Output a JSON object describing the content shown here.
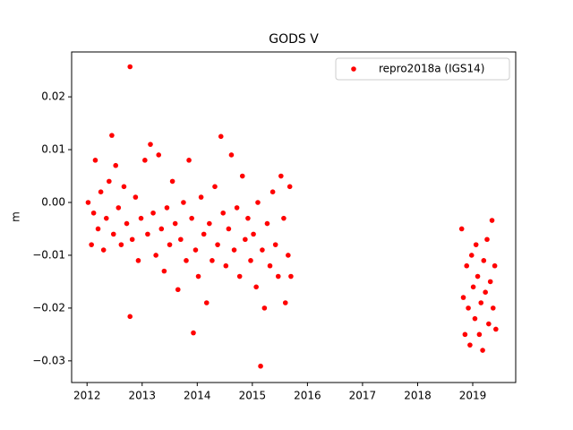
{
  "chart_data": {
    "type": "scatter",
    "title": "GODS V",
    "y_label": "m",
    "xlim": [
      2011.72,
      2019.78
    ],
    "ylim": [
      -0.0341,
      0.0285
    ],
    "xticks": [
      2012,
      2013,
      2014,
      2015,
      2016,
      2017,
      2018,
      2019
    ],
    "yticks": [
      {
        "value": -0.03,
        "label": "−0.03"
      },
      {
        "value": -0.02,
        "label": "−0.02"
      },
      {
        "value": -0.01,
        "label": "−0.01"
      },
      {
        "value": 0,
        "label": "0.00"
      },
      0.01,
      0.02
    ],
    "legend": "upper right",
    "grid": false,
    "series": [
      {
        "name": "repro2018a (IGS14)",
        "color": "#ff0000",
        "x": [
          2012.02,
          2012.08,
          2012.12,
          2012.15,
          2012.2,
          2012.25,
          2012.3,
          2012.35,
          2012.4,
          2012.45,
          2012.48,
          2012.52,
          2012.57,
          2012.62,
          2012.67,
          2012.72,
          2012.78,
          2012.78,
          2012.82,
          2012.88,
          2012.93,
          2012.98,
          2013.05,
          2013.1,
          2013.15,
          2013.2,
          2013.25,
          2013.3,
          2013.35,
          2013.4,
          2013.45,
          2013.5,
          2013.55,
          2013.6,
          2013.65,
          2013.7,
          2013.75,
          2013.8,
          2013.85,
          2013.9,
          2013.93,
          2013.97,
          2014.02,
          2014.07,
          2014.12,
          2014.17,
          2014.22,
          2014.27,
          2014.32,
          2014.37,
          2014.43,
          2014.47,
          2014.52,
          2014.57,
          2014.62,
          2014.67,
          2014.72,
          2014.77,
          2014.82,
          2014.87,
          2014.92,
          2014.97,
          2015.02,
          2015.07,
          2015.1,
          2015.15,
          2015.18,
          2015.22,
          2015.27,
          2015.32,
          2015.37,
          2015.42,
          2015.47,
          2015.52,
          2015.57,
          2015.6,
          2015.65,
          2015.68,
          2015.7,
          2018.8,
          2018.83,
          2018.86,
          2018.89,
          2018.92,
          2018.95,
          2018.98,
          2019.01,
          2019.04,
          2019.06,
          2019.09,
          2019.12,
          2019.15,
          2019.18,
          2019.2,
          2019.23,
          2019.26,
          2019.29,
          2019.32,
          2019.35,
          2019.37,
          2019.4,
          2019.42
        ],
        "values": [
          0.0,
          -0.008,
          -0.002,
          0.008,
          -0.005,
          0.002,
          -0.009,
          -0.003,
          0.004,
          0.0127,
          -0.006,
          0.007,
          -0.001,
          -0.008,
          0.003,
          -0.004,
          0.0257,
          -0.0216,
          -0.007,
          0.001,
          -0.011,
          -0.003,
          0.008,
          -0.006,
          0.011,
          -0.002,
          -0.01,
          0.009,
          -0.005,
          -0.013,
          -0.001,
          -0.008,
          0.004,
          -0.004,
          -0.0165,
          -0.007,
          0.0,
          -0.011,
          0.008,
          -0.003,
          -0.0247,
          -0.009,
          -0.014,
          0.001,
          -0.006,
          -0.019,
          -0.004,
          -0.011,
          0.003,
          -0.008,
          0.0125,
          -0.002,
          -0.012,
          -0.005,
          0.009,
          -0.009,
          -0.001,
          -0.014,
          0.005,
          -0.007,
          -0.003,
          -0.011,
          -0.006,
          -0.016,
          0.0,
          -0.031,
          -0.009,
          -0.02,
          -0.004,
          -0.012,
          0.002,
          -0.008,
          -0.014,
          0.005,
          -0.003,
          -0.019,
          -0.01,
          0.003,
          -0.014,
          -0.005,
          -0.018,
          -0.025,
          -0.012,
          -0.02,
          -0.027,
          -0.01,
          -0.016,
          -0.022,
          -0.008,
          -0.014,
          -0.025,
          -0.019,
          -0.028,
          -0.011,
          -0.017,
          -0.007,
          -0.023,
          -0.015,
          -0.0034,
          -0.02,
          -0.012,
          -0.024
        ]
      }
    ]
  }
}
